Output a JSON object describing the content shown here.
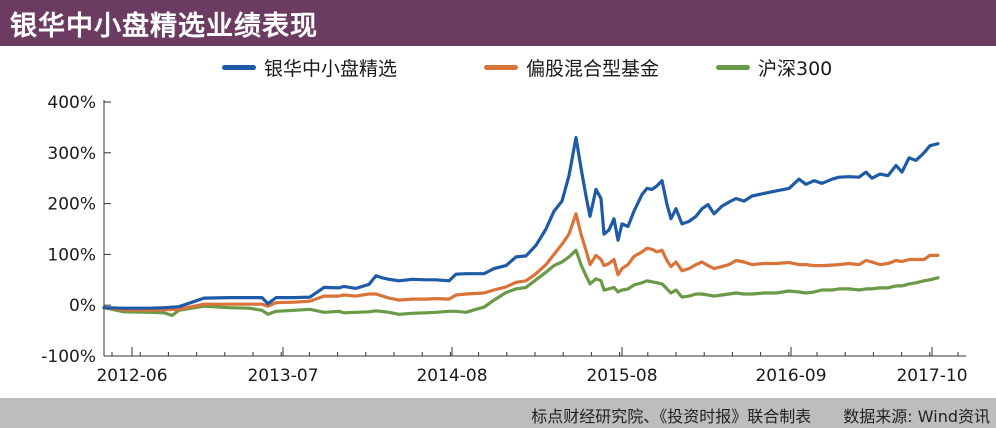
{
  "header": {
    "title": "银华中小盘精选业绩表现"
  },
  "footer": {
    "source_text": "标点财经研究院、《投资时报》联合制表　　数据来源: Wind资讯"
  },
  "chart_data": {
    "type": "line",
    "x_tick_labels": [
      "2012-06",
      "2013-07",
      "2014-08",
      "2015-08",
      "2016-09",
      "2017-10"
    ],
    "y_tick_labels": [
      "400%",
      "300%",
      "200%",
      "100%",
      "0%",
      "-100%"
    ],
    "ylim": [
      -100,
      400
    ],
    "grid": false,
    "legend_position": "top",
    "series": [
      {
        "name": "银华中小盘精选",
        "color": "#1f5aa6",
        "points": [
          [
            0,
            -5
          ],
          [
            20,
            -6
          ],
          [
            45,
            -6
          ],
          [
            60,
            -5
          ],
          [
            75,
            -3
          ],
          [
            100,
            14
          ],
          [
            125,
            15
          ],
          [
            145,
            15
          ],
          [
            158,
            15
          ],
          [
            164,
            3
          ],
          [
            172,
            15
          ],
          [
            190,
            15
          ],
          [
            206,
            16
          ],
          [
            220,
            35
          ],
          [
            235,
            34
          ],
          [
            240,
            37
          ],
          [
            252,
            33
          ],
          [
            265,
            41
          ],
          [
            272,
            58
          ],
          [
            278,
            54
          ],
          [
            285,
            51
          ],
          [
            295,
            48
          ],
          [
            308,
            51
          ],
          [
            322,
            50
          ],
          [
            332,
            50
          ],
          [
            345,
            48
          ],
          [
            352,
            61
          ],
          [
            362,
            62
          ],
          [
            380,
            62
          ],
          [
            390,
            72
          ],
          [
            402,
            78
          ],
          [
            412,
            95
          ],
          [
            422,
            97
          ],
          [
            432,
            118
          ],
          [
            442,
            150
          ],
          [
            450,
            185
          ],
          [
            458,
            205
          ],
          [
            465,
            255
          ],
          [
            472,
            330
          ],
          [
            477,
            270
          ],
          [
            482,
            215
          ],
          [
            486,
            175
          ],
          [
            492,
            228
          ],
          [
            497,
            210
          ],
          [
            500,
            140
          ],
          [
            505,
            148
          ],
          [
            510,
            170
          ],
          [
            514,
            128
          ],
          [
            518,
            160
          ],
          [
            524,
            155
          ],
          [
            530,
            185
          ],
          [
            538,
            218
          ],
          [
            543,
            230
          ],
          [
            548,
            228
          ],
          [
            553,
            235
          ],
          [
            558,
            245
          ],
          [
            563,
            198
          ],
          [
            567,
            170
          ],
          [
            572,
            190
          ],
          [
            578,
            160
          ],
          [
            585,
            165
          ],
          [
            592,
            175
          ],
          [
            598,
            190
          ],
          [
            604,
            198
          ],
          [
            610,
            180
          ],
          [
            618,
            195
          ],
          [
            625,
            203
          ],
          [
            632,
            210
          ],
          [
            640,
            205
          ],
          [
            648,
            215
          ],
          [
            660,
            220
          ],
          [
            672,
            225
          ],
          [
            685,
            230
          ],
          [
            695,
            248
          ],
          [
            702,
            238
          ],
          [
            710,
            245
          ],
          [
            718,
            240
          ],
          [
            728,
            248
          ],
          [
            735,
            252
          ],
          [
            745,
            253
          ],
          [
            755,
            252
          ],
          [
            762,
            262
          ],
          [
            768,
            250
          ],
          [
            776,
            258
          ],
          [
            784,
            255
          ],
          [
            792,
            275
          ],
          [
            798,
            262
          ],
          [
            805,
            290
          ],
          [
            812,
            285
          ],
          [
            820,
            300
          ],
          [
            826,
            314
          ],
          [
            834,
            318
          ]
        ]
      },
      {
        "name": "偏股混合型基金",
        "color": "#d9733a",
        "points": [
          [
            0,
            -5
          ],
          [
            20,
            -9
          ],
          [
            45,
            -10
          ],
          [
            60,
            -9
          ],
          [
            75,
            -8
          ],
          [
            100,
            2
          ],
          [
            125,
            2
          ],
          [
            145,
            2
          ],
          [
            158,
            2
          ],
          [
            164,
            -2
          ],
          [
            172,
            5
          ],
          [
            190,
            6
          ],
          [
            206,
            8
          ],
          [
            220,
            18
          ],
          [
            235,
            18
          ],
          [
            240,
            20
          ],
          [
            252,
            18
          ],
          [
            265,
            22
          ],
          [
            272,
            22
          ],
          [
            285,
            14
          ],
          [
            295,
            10
          ],
          [
            308,
            12
          ],
          [
            322,
            12
          ],
          [
            332,
            13
          ],
          [
            345,
            12
          ],
          [
            352,
            20
          ],
          [
            362,
            22
          ],
          [
            380,
            24
          ],
          [
            390,
            30
          ],
          [
            402,
            36
          ],
          [
            412,
            45
          ],
          [
            422,
            48
          ],
          [
            432,
            62
          ],
          [
            442,
            80
          ],
          [
            450,
            100
          ],
          [
            458,
            120
          ],
          [
            465,
            140
          ],
          [
            472,
            180
          ],
          [
            477,
            140
          ],
          [
            482,
            108
          ],
          [
            486,
            80
          ],
          [
            492,
            98
          ],
          [
            497,
            90
          ],
          [
            500,
            78
          ],
          [
            505,
            82
          ],
          [
            510,
            90
          ],
          [
            514,
            60
          ],
          [
            518,
            72
          ],
          [
            524,
            80
          ],
          [
            530,
            96
          ],
          [
            538,
            105
          ],
          [
            543,
            112
          ],
          [
            548,
            110
          ],
          [
            553,
            105
          ],
          [
            558,
            108
          ],
          [
            563,
            88
          ],
          [
            567,
            76
          ],
          [
            572,
            85
          ],
          [
            578,
            68
          ],
          [
            585,
            72
          ],
          [
            592,
            80
          ],
          [
            598,
            85
          ],
          [
            604,
            78
          ],
          [
            610,
            72
          ],
          [
            618,
            76
          ],
          [
            625,
            80
          ],
          [
            632,
            88
          ],
          [
            640,
            85
          ],
          [
            648,
            80
          ],
          [
            660,
            82
          ],
          [
            672,
            82
          ],
          [
            685,
            84
          ],
          [
            695,
            80
          ],
          [
            702,
            80
          ],
          [
            710,
            78
          ],
          [
            718,
            78
          ],
          [
            728,
            79
          ],
          [
            735,
            80
          ],
          [
            745,
            82
          ],
          [
            755,
            80
          ],
          [
            762,
            88
          ],
          [
            768,
            85
          ],
          [
            776,
            80
          ],
          [
            784,
            82
          ],
          [
            792,
            88
          ],
          [
            798,
            86
          ],
          [
            805,
            90
          ],
          [
            812,
            90
          ],
          [
            820,
            90
          ],
          [
            826,
            98
          ],
          [
            834,
            98
          ]
        ]
      },
      {
        "name": "沪深300",
        "color": "#6a9a47",
        "points": [
          [
            0,
            -5
          ],
          [
            20,
            -13
          ],
          [
            45,
            -14
          ],
          [
            60,
            -15
          ],
          [
            68,
            -20
          ],
          [
            75,
            -10
          ],
          [
            100,
            -2
          ],
          [
            125,
            -5
          ],
          [
            145,
            -6
          ],
          [
            158,
            -10
          ],
          [
            164,
            -18
          ],
          [
            172,
            -12
          ],
          [
            190,
            -10
          ],
          [
            206,
            -8
          ],
          [
            220,
            -14
          ],
          [
            235,
            -12
          ],
          [
            240,
            -15
          ],
          [
            252,
            -14
          ],
          [
            265,
            -13
          ],
          [
            272,
            -11
          ],
          [
            285,
            -14
          ],
          [
            295,
            -18
          ],
          [
            308,
            -16
          ],
          [
            322,
            -15
          ],
          [
            332,
            -14
          ],
          [
            345,
            -12
          ],
          [
            352,
            -12
          ],
          [
            362,
            -14
          ],
          [
            372,
            -8
          ],
          [
            380,
            -4
          ],
          [
            390,
            10
          ],
          [
            402,
            25
          ],
          [
            412,
            32
          ],
          [
            422,
            35
          ],
          [
            432,
            50
          ],
          [
            442,
            65
          ],
          [
            450,
            78
          ],
          [
            458,
            85
          ],
          [
            465,
            95
          ],
          [
            472,
            108
          ],
          [
            477,
            80
          ],
          [
            482,
            58
          ],
          [
            486,
            42
          ],
          [
            492,
            52
          ],
          [
            497,
            48
          ],
          [
            500,
            30
          ],
          [
            505,
            32
          ],
          [
            510,
            35
          ],
          [
            514,
            26
          ],
          [
            518,
            30
          ],
          [
            524,
            32
          ],
          [
            530,
            40
          ],
          [
            538,
            44
          ],
          [
            543,
            48
          ],
          [
            548,
            46
          ],
          [
            553,
            44
          ],
          [
            558,
            42
          ],
          [
            563,
            32
          ],
          [
            567,
            24
          ],
          [
            572,
            30
          ],
          [
            578,
            16
          ],
          [
            585,
            18
          ],
          [
            592,
            22
          ],
          [
            598,
            22
          ],
          [
            604,
            20
          ],
          [
            610,
            18
          ],
          [
            618,
            20
          ],
          [
            625,
            22
          ],
          [
            632,
            24
          ],
          [
            640,
            22
          ],
          [
            648,
            22
          ],
          [
            660,
            24
          ],
          [
            672,
            24
          ],
          [
            685,
            28
          ],
          [
            695,
            26
          ],
          [
            702,
            24
          ],
          [
            710,
            26
          ],
          [
            718,
            30
          ],
          [
            728,
            30
          ],
          [
            735,
            32
          ],
          [
            745,
            32
          ],
          [
            755,
            30
          ],
          [
            762,
            32
          ],
          [
            768,
            32
          ],
          [
            776,
            34
          ],
          [
            784,
            34
          ],
          [
            792,
            38
          ],
          [
            798,
            38
          ],
          [
            805,
            42
          ],
          [
            812,
            44
          ],
          [
            820,
            48
          ],
          [
            826,
            50
          ],
          [
            834,
            54
          ]
        ]
      }
    ]
  }
}
